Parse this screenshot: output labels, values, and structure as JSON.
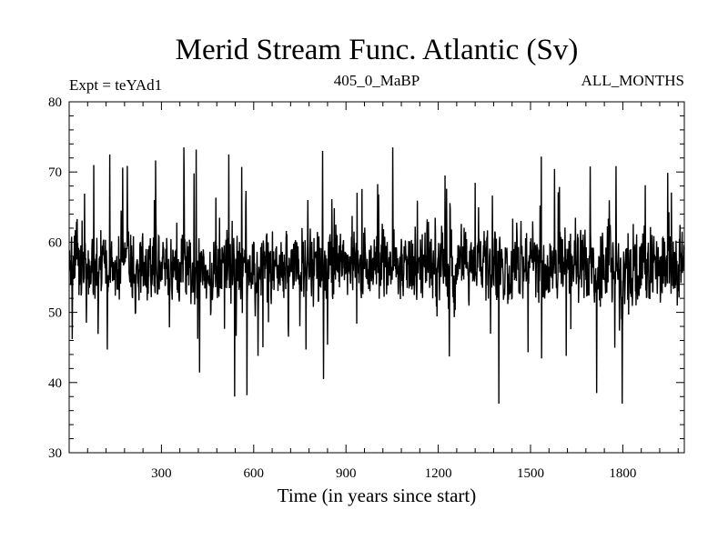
{
  "chart_data": {
    "type": "line",
    "title": "Merid Stream Func. Atlantic (Sv)",
    "subtitle_left": "Expt = teYAd1",
    "subtitle_center": "405_0_MaBP",
    "subtitle_right": "ALL_MONTHS",
    "xlabel": "Time (in years since start)",
    "ylabel": "",
    "xlim": [
      0,
      2000
    ],
    "ylim": [
      30,
      80
    ],
    "x_ticks": [
      300,
      600,
      900,
      1200,
      1500,
      1800
    ],
    "y_ticks": [
      30,
      40,
      50,
      60,
      70,
      80
    ],
    "grid": false,
    "series": [
      {
        "name": "Merid Stream Func. Atlantic",
        "color": "#000000",
        "x_start": 1,
        "x_step": 1,
        "n_points": 2000,
        "mean": 56.5,
        "typical_range": [
          47,
          66
        ],
        "observed_min": 37,
        "observed_max": 73.5,
        "extremes": [
          {
            "x": 538,
            "y": 38
          },
          {
            "x": 578,
            "y": 38.2
          },
          {
            "x": 827,
            "y": 40.5
          },
          {
            "x": 1397,
            "y": 37
          },
          {
            "x": 1715,
            "y": 38.5
          },
          {
            "x": 1798,
            "y": 37
          },
          {
            "x": 1052,
            "y": 73.5
          },
          {
            "x": 373,
            "y": 73.5
          },
          {
            "x": 413,
            "y": 73.2
          },
          {
            "x": 824,
            "y": 73.0
          },
          {
            "x": 1535,
            "y": 72.2
          },
          {
            "x": 80,
            "y": 71.0
          }
        ]
      }
    ]
  }
}
